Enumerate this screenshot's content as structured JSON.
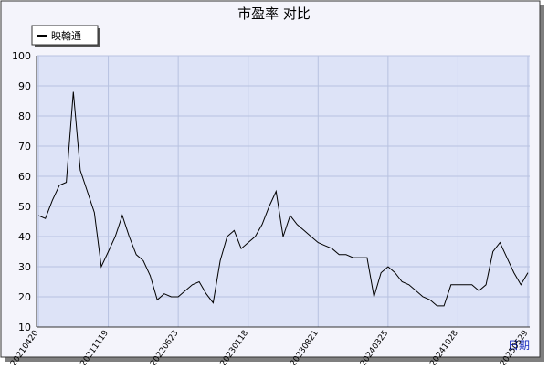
{
  "chart_data": {
    "type": "line",
    "title": "市盈率  对比",
    "x_label": "日期",
    "categories": [
      "20210420",
      null,
      null,
      null,
      null,
      null,
      null,
      null,
      null,
      null,
      "20211119",
      null,
      null,
      null,
      null,
      null,
      null,
      null,
      null,
      null,
      "20220623",
      null,
      null,
      null,
      null,
      null,
      null,
      null,
      null,
      null,
      "20230118",
      null,
      null,
      null,
      null,
      null,
      null,
      null,
      null,
      null,
      "20230821",
      null,
      null,
      null,
      null,
      null,
      null,
      null,
      null,
      null,
      "20240325",
      null,
      null,
      null,
      null,
      null,
      null,
      null,
      null,
      null,
      "20241028",
      null,
      null,
      null,
      null,
      null,
      null,
      null,
      null,
      null,
      "20250529"
    ],
    "series": [
      {
        "name": "映翰通",
        "color": "#000000",
        "values": [
          47,
          46,
          52,
          57,
          58,
          88,
          62,
          55,
          48,
          30,
          35,
          40,
          47,
          40,
          34,
          32,
          27,
          19,
          21,
          20,
          20,
          22,
          24,
          25,
          21,
          18,
          32,
          40,
          42,
          36,
          38,
          40,
          44,
          50,
          55,
          40,
          47,
          44,
          42,
          40,
          38,
          37,
          36,
          34,
          34,
          33,
          33,
          33,
          20,
          28,
          30,
          28,
          25,
          24,
          22,
          20,
          19,
          17,
          17,
          24,
          24,
          24,
          24,
          22,
          24,
          35,
          38,
          33,
          28,
          24,
          28
        ]
      }
    ],
    "ylim": [
      10,
      100
    ],
    "yticks": [
      10,
      20,
      30,
      40,
      50,
      60,
      70,
      80,
      90,
      100
    ],
    "grid": true,
    "legend": "top-left"
  }
}
